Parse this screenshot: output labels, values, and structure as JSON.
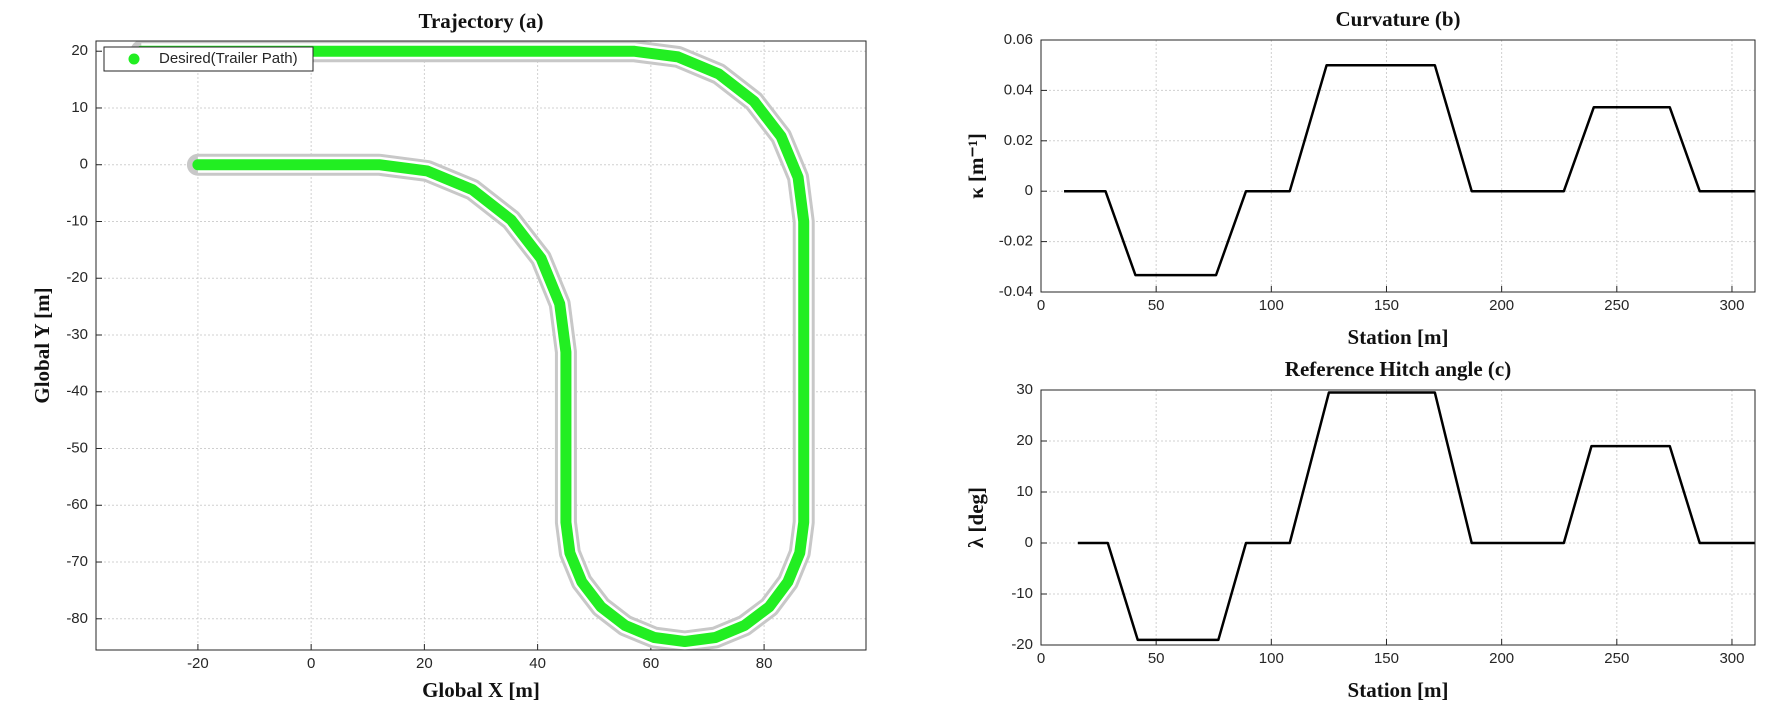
{
  "chart_data": [
    {
      "type": "line",
      "title": "Trajectory (a)",
      "x_label": "Global X [m]",
      "y_label": "Global Y [m]",
      "x": [
        -20,
        12,
        20.5,
        28.5,
        35.3,
        40.6,
        43.9,
        45,
        45,
        45.7,
        47.8,
        51.2,
        55.5,
        60.6,
        66,
        71.4,
        76.5,
        80.9,
        84.2,
        86.3,
        87,
        87,
        86,
        83,
        78.2,
        72,
        64.8,
        57,
        -30
      ],
      "series": [
        {
          "name": "Desired(Trailer Path)",
          "color": "#22ee22",
          "values": [
            0,
            0,
            -1.1,
            -4.4,
            -9.7,
            -16.5,
            -24.5,
            -33,
            -63,
            -68.4,
            -73.5,
            -77.9,
            -81.2,
            -83.3,
            -84,
            -83.3,
            -81.2,
            -77.9,
            -73.5,
            -68.4,
            -63,
            -10,
            -2.2,
            5,
            11.2,
            16,
            19,
            20,
            20
          ]
        }
      ],
      "xlim": [
        -38,
        98
      ],
      "ylim": [
        -85.5,
        21.8
      ],
      "xticks": [
        -20,
        0,
        20,
        40,
        60,
        80
      ],
      "yticks": [
        20,
        10,
        0,
        -10,
        -20,
        -30,
        -40,
        -50,
        -60,
        -70,
        -80
      ],
      "grid": true,
      "legend": "upper left"
    },
    {
      "type": "line",
      "title": "Curvature (b)",
      "x_label": "Station [m]",
      "y_label": "κ [m⁻¹]",
      "x": [
        10,
        28,
        41,
        76,
        89,
        108,
        124,
        171,
        187,
        227,
        240,
        273,
        286,
        310
      ],
      "values": [
        0,
        0,
        -0.0333,
        -0.0333,
        0,
        0,
        0.05,
        0.05,
        0,
        0,
        0.0333,
        0.0333,
        0,
        0
      ],
      "color": "#000000",
      "xlim": [
        0,
        310
      ],
      "ylim": [
        -0.04,
        0.06
      ],
      "xticks": [
        0,
        50,
        100,
        150,
        200,
        250,
        300
      ],
      "yticks": [
        -0.04,
        -0.02,
        0,
        0.02,
        0.04,
        0.06
      ],
      "grid": true
    },
    {
      "type": "line",
      "title": "Reference Hitch angle (c)",
      "x_label": "Station [m]",
      "y_label": "λ [deg]",
      "x": [
        16,
        29,
        42,
        77,
        89,
        108,
        125,
        171,
        187,
        227,
        239,
        273,
        286,
        310
      ],
      "values": [
        0,
        0,
        -19,
        -19,
        0,
        0,
        29.5,
        29.5,
        0,
        0,
        19,
        19,
        0,
        0
      ],
      "color": "#000000",
      "xlim": [
        0,
        310
      ],
      "ylim": [
        -20,
        30
      ],
      "xticks": [
        0,
        50,
        100,
        150,
        200,
        250,
        300
      ],
      "yticks": [
        -20,
        -10,
        0,
        10,
        20,
        30
      ],
      "grid": true
    }
  ]
}
